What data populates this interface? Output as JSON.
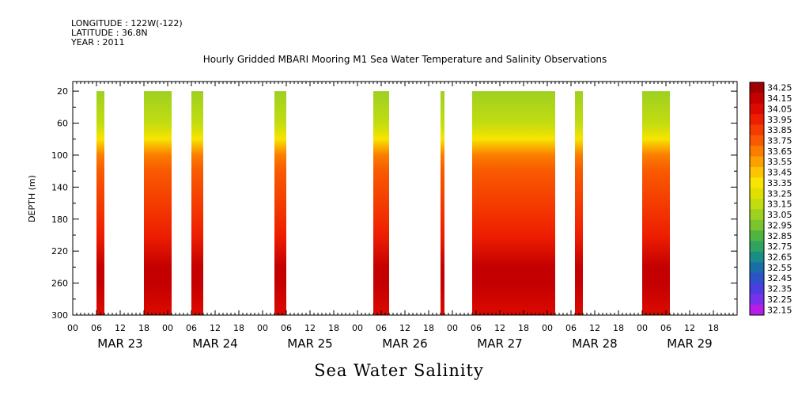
{
  "header": {
    "longitude": "LONGITUDE : 122W(-122)",
    "latitude": "LATITUDE : 36.8N",
    "year": "YEAR : 2011"
  },
  "chart_data": {
    "type": "heatmap",
    "title": "Hourly Gridded MBARI Mooring M1 Sea Water Temperature and Salinity Observations",
    "caption": "Sea Water Salinity",
    "ylabel": "DEPTH (m)",
    "y_reversed": true,
    "ylim": [
      8,
      300
    ],
    "yticks": [
      20,
      60,
      100,
      140,
      180,
      220,
      260,
      300
    ],
    "x_hour_labels": [
      "00",
      "06",
      "12",
      "18",
      "00",
      "06",
      "12",
      "18",
      "00",
      "06",
      "12",
      "18",
      "00",
      "06",
      "12",
      "18",
      "00",
      "06",
      "12",
      "18",
      "00",
      "06",
      "12",
      "18",
      "00",
      "06",
      "12",
      "18"
    ],
    "x_dates": [
      "MAR 23",
      "MAR 24",
      "MAR 25",
      "MAR 26",
      "MAR 27",
      "MAR 28",
      "MAR 29"
    ],
    "xlim_hours": [
      0,
      168
    ],
    "colorbar": {
      "levels": [
        "34.25",
        "34.15",
        "34.05",
        "33.95",
        "33.85",
        "33.75",
        "33.65",
        "33.55",
        "33.45",
        "33.35",
        "33.25",
        "33.15",
        "33.05",
        "32.95",
        "32.85",
        "32.75",
        "32.65",
        "32.55",
        "32.45",
        "32.35",
        "32.25",
        "32.15"
      ],
      "colors": [
        "#a00000",
        "#c40000",
        "#dc0a00",
        "#ee1e00",
        "#f43c00",
        "#f85a00",
        "#fb7d00",
        "#fca000",
        "#fdc400",
        "#f8e400",
        "#e0e000",
        "#c2dc10",
        "#9ed020",
        "#7cc42c",
        "#50b440",
        "#2ea460",
        "#1a8c86",
        "#1a6ea8",
        "#2a54c8",
        "#4a3ee0",
        "#7830ec",
        "#b41ee6"
      ]
    },
    "segments_hours": [
      [
        6,
        8
      ],
      [
        18,
        25
      ],
      [
        30,
        33
      ],
      [
        51,
        54
      ],
      [
        76,
        80
      ],
      [
        93,
        94
      ],
      [
        101,
        122
      ],
      [
        127,
        129
      ],
      [
        144,
        151
      ]
    ],
    "profile": [
      {
        "depth": 20,
        "salinity": 33.12
      },
      {
        "depth": 60,
        "salinity": 33.2
      },
      {
        "depth": 80,
        "salinity": 33.4
      },
      {
        "depth": 100,
        "salinity": 33.65
      },
      {
        "depth": 120,
        "salinity": 33.8
      },
      {
        "depth": 160,
        "salinity": 33.9
      },
      {
        "depth": 200,
        "salinity": 33.98
      },
      {
        "depth": 240,
        "salinity": 34.15
      },
      {
        "depth": 260,
        "salinity": 34.22
      },
      {
        "depth": 300,
        "salinity": 34.1
      }
    ]
  }
}
